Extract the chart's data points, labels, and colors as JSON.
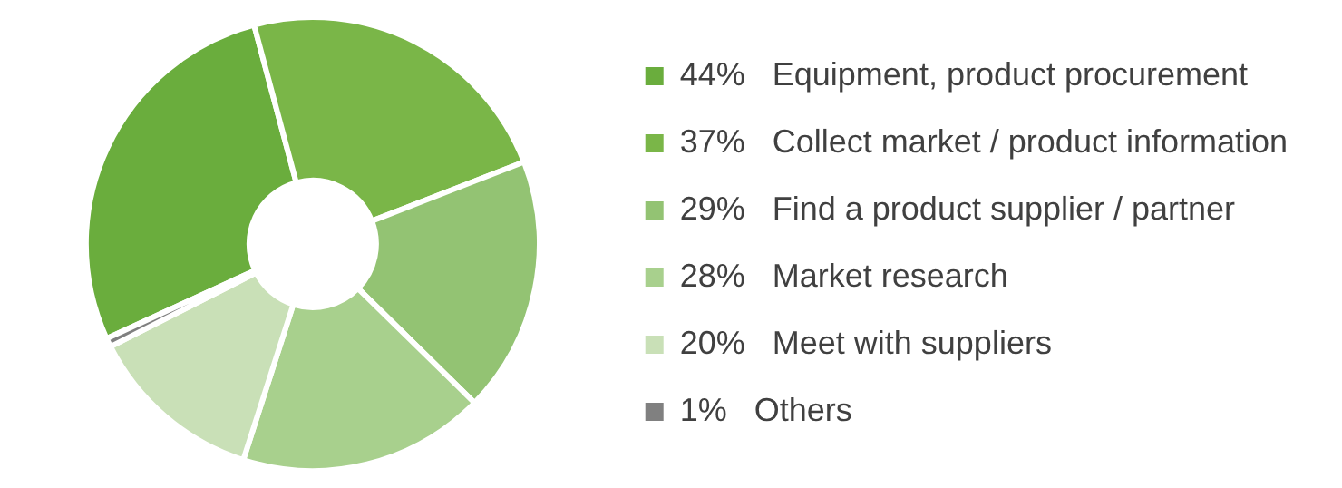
{
  "chart_data": {
    "type": "donut",
    "categories": [
      "Equipment, product procurement",
      "Collect market / product information",
      "Find a product supplier / partner",
      "Market research",
      "Meet with suppliers",
      "Others"
    ],
    "values": [
      44,
      37,
      29,
      28,
      20,
      1
    ],
    "value_labels": [
      "44%",
      "37%",
      "29%",
      "28%",
      "20%",
      "1%"
    ],
    "colors": [
      "#6aad3d",
      "#7ab648",
      "#93c373",
      "#a8d08d",
      "#c9e0b7",
      "#808080"
    ],
    "legend": "right"
  }
}
